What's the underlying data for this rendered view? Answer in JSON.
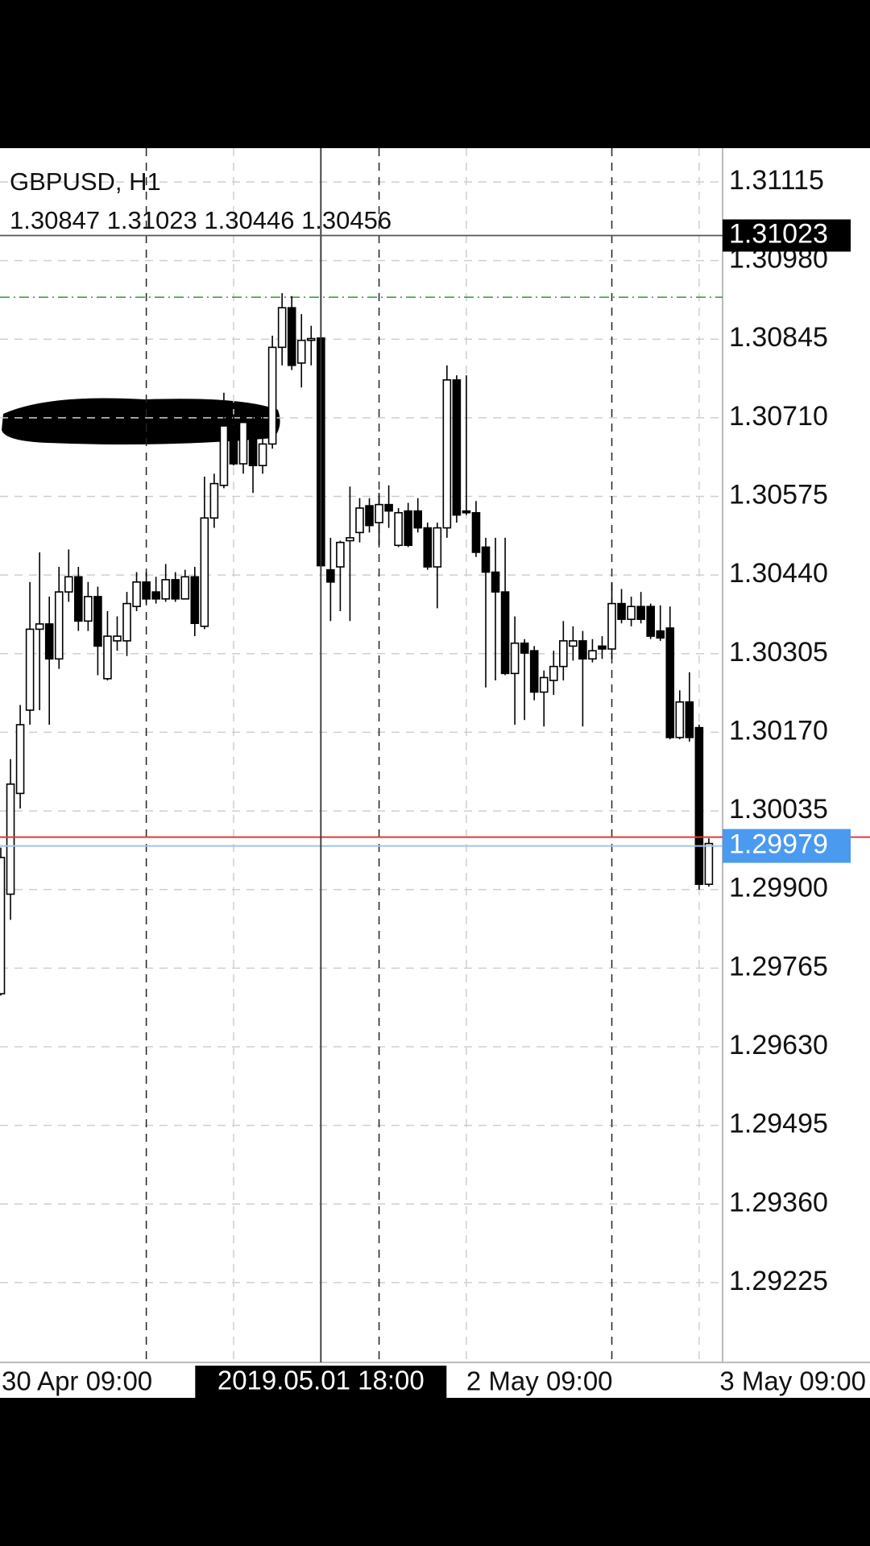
{
  "chart_data": {
    "type": "candlestick",
    "title": "GBPUSD, H1",
    "categories": [
      "30 Apr 09:00",
      null,
      null,
      null,
      null,
      null,
      null,
      null,
      null,
      null,
      null,
      null,
      null,
      null,
      null,
      null,
      null,
      null,
      null,
      null,
      null,
      null,
      null,
      null,
      null,
      null,
      null,
      null,
      null,
      null,
      null,
      null,
      null,
      null,
      null,
      null,
      null,
      null,
      null,
      null,
      null,
      null,
      null,
      null,
      null,
      null,
      null,
      null,
      "2 May 09:00",
      null,
      null,
      null,
      null,
      null,
      null,
      null,
      null,
      null,
      null,
      null,
      null,
      null,
      null,
      null,
      null,
      null,
      null,
      null,
      null,
      null,
      null,
      null,
      "3 May 09:00",
      null
    ],
    "open": [
      1.29721,
      1.29892,
      1.30065,
      1.30208,
      1.30347,
      1.30356,
      1.30296,
      1.30411,
      1.30437,
      1.30361,
      1.30403,
      1.30262,
      1.30327,
      1.30327,
      1.30386,
      1.30428,
      1.30411,
      1.30399,
      1.30432,
      1.30399,
      1.30437,
      1.30352,
      1.30538,
      1.30594,
      1.30696,
      1.30631,
      1.30702,
      1.30628,
      1.30665,
      1.30831,
      1.30899,
      1.30804,
      1.30843,
      1.30847,
      1.30449,
      1.30454,
      1.30499,
      1.30513,
      1.30559,
      1.3053,
      1.30561,
      1.30491,
      1.3055,
      1.3055,
      1.30521,
      1.30454,
      1.30521,
      1.30775,
      1.3055,
      1.30547,
      1.30488,
      1.30445,
      1.30411,
      1.30271,
      1.30323,
      1.3031,
      1.30239,
      1.30259,
      1.30283,
      1.30318,
      1.30327,
      1.30296,
      1.30318,
      1.30313,
      1.30391,
      1.30364,
      1.30386,
      1.30386,
      1.30344,
      1.30349,
      1.30161,
      1.30222,
      1.30178,
      1.29909
    ],
    "high": [
      1.29972,
      1.30124,
      1.30217,
      1.30428,
      1.30479,
      1.30403,
      1.30454,
      1.30484,
      1.30454,
      1.30428,
      1.3042,
      1.30378,
      1.30369,
      1.30411,
      1.30445,
      1.30445,
      1.30437,
      1.30459,
      1.30445,
      1.30449,
      1.30454,
      1.30609,
      1.30614,
      1.30753,
      1.30716,
      1.30719,
      1.30716,
      1.30716,
      1.30851,
      1.30924,
      1.30919,
      1.30888,
      1.30868,
      1.31023,
      1.30504,
      1.30499,
      1.30592,
      1.30572,
      1.30572,
      1.30581,
      1.30594,
      1.30555,
      1.30564,
      1.30572,
      1.3053,
      1.3053,
      1.308,
      1.30783,
      1.30783,
      1.30567,
      1.30504,
      1.30504,
      1.30504,
      1.30369,
      1.3033,
      1.30318,
      1.30276,
      1.3031,
      1.30361,
      1.30352,
      1.30344,
      1.3033,
      1.30335,
      1.30428,
      1.30416,
      1.30403,
      1.30411,
      1.30391,
      1.30388,
      1.30386,
      1.30242,
      1.30273,
      1.30183,
      1.29988
    ],
    "low": [
      1.29718,
      1.29848,
      1.30039,
      1.30183,
      1.30208,
      1.30183,
      1.30279,
      1.30394,
      1.30344,
      1.30344,
      1.30268,
      1.30259,
      1.3031,
      1.30301,
      1.30378,
      1.30391,
      1.30391,
      1.30394,
      1.30394,
      1.30398,
      1.30335,
      1.30347,
      1.30521,
      1.30589,
      1.30628,
      1.30614,
      1.30581,
      1.30614,
      1.30657,
      1.308,
      1.30792,
      1.30762,
      1.308,
      1.30446,
      1.30361,
      1.30378,
      1.30361,
      1.30496,
      1.30513,
      1.30491,
      1.30521,
      1.30488,
      1.30488,
      1.30513,
      1.30449,
      1.30383,
      1.30504,
      1.3053,
      1.30543,
      1.30471,
      1.30247,
      1.30259,
      1.30268,
      1.30183,
      1.30191,
      1.30225,
      1.3018,
      1.30234,
      1.30259,
      1.30293,
      1.3018,
      1.3029,
      1.30296,
      1.30296,
      1.30357,
      1.30352,
      1.30357,
      1.3033,
      1.30327,
      1.30158,
      1.30158,
      1.30154,
      1.299,
      1.29905
    ],
    "close": [
      1.29955,
      1.30081,
      1.30183,
      1.30347,
      1.30356,
      1.30296,
      1.30411,
      1.30437,
      1.30361,
      1.30403,
      1.30318,
      1.30335,
      1.30335,
      1.30391,
      1.30428,
      1.30399,
      1.30399,
      1.30432,
      1.30399,
      1.30437,
      1.30357,
      1.30538,
      1.30597,
      1.30696,
      1.30631,
      1.30702,
      1.30628,
      1.30665,
      1.30831,
      1.30899,
      1.308,
      1.30843,
      1.30846,
      1.30456,
      1.30428,
      1.30496,
      1.30504,
      1.30555,
      1.30525,
      1.30561,
      1.3055,
      1.30547,
      1.30491,
      1.30521,
      1.30454,
      1.30521,
      1.30775,
      1.30543,
      1.30547,
      1.30479,
      1.30445,
      1.30411,
      1.30271,
      1.30323,
      1.30306,
      1.30239,
      1.30264,
      1.30283,
      1.30327,
      1.30327,
      1.30296,
      1.3031,
      1.30313,
      1.30391,
      1.30364,
      1.30386,
      1.30364,
      1.30335,
      1.30332,
      1.30161,
      1.30222,
      1.30161,
      1.29909,
      1.29979
    ],
    "up_color": "#ffffff",
    "down_color": "#000000",
    "ylim": [
      1.29088,
      1.31173
    ],
    "yticks": [
      1.31115,
      {
        "value": 1.3098,
        "label": "1.30980"
      },
      1.30845,
      {
        "value": 1.3071,
        "label": "1.30710"
      },
      1.30575,
      {
        "value": 1.3044,
        "label": "1.30440"
      },
      1.30305,
      {
        "value": 1.3017,
        "label": "1.30170"
      },
      1.30035,
      {
        "value": 1.299,
        "label": "1.29900"
      },
      1.29765,
      {
        "value": 1.2963,
        "label": "1.29630"
      },
      1.29495,
      {
        "value": 1.2936,
        "label": "1.29360"
      },
      1.29225
    ],
    "grid": true,
    "crosshair": {
      "index": 33,
      "time": "2019.05.01 18:00",
      "price": 1.31023
    },
    "bid": 1.29979,
    "bid_color": "#4a9af0",
    "ask": 1.2999,
    "ask_color": "#e53935",
    "level": 1.30917,
    "level_color": "#2e9a2e"
  }
}
